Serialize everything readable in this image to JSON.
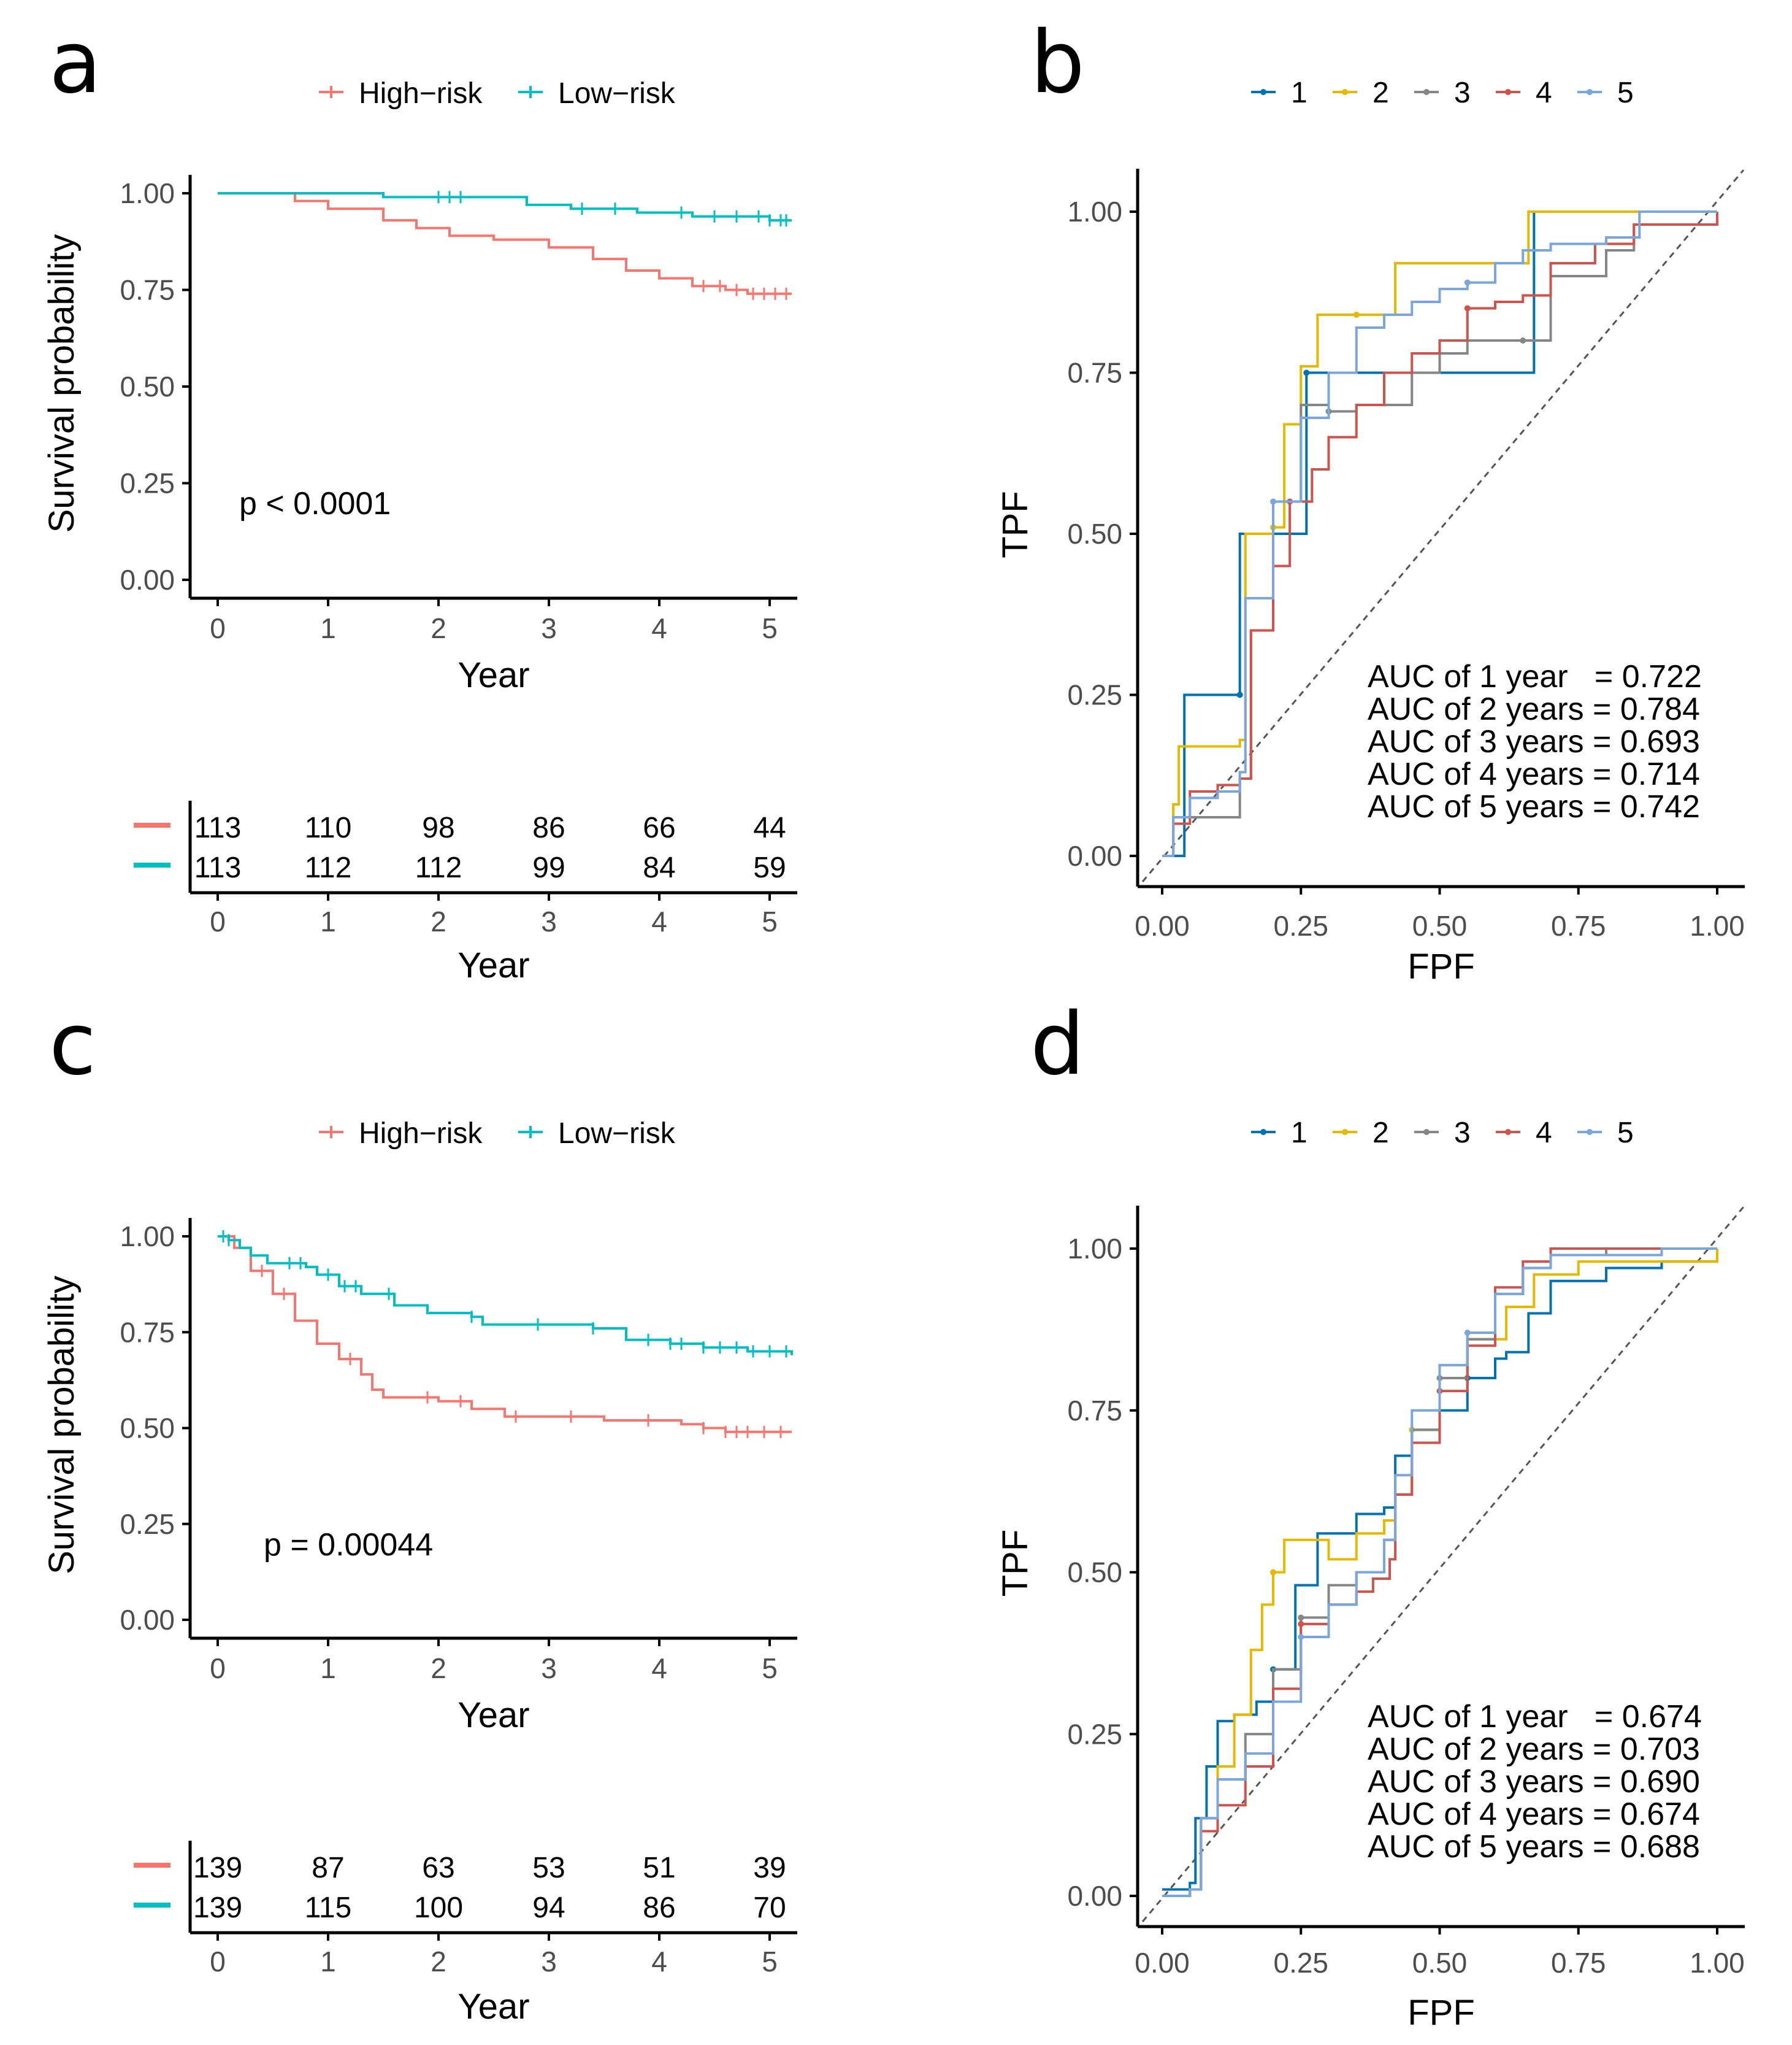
{
  "panels": {
    "a": {
      "letter": "a",
      "legend": [
        {
          "label": "High−risk",
          "color": "#F8766D"
        },
        {
          "label": "Low−risk",
          "color": "#00BFC4"
        }
      ],
      "pvalue": "p < 0.0001",
      "risk_table": {
        "rows": [
          {
            "color": "#F8766D",
            "values": [
              "113",
              "110",
              "98",
              "86",
              "66",
              "44"
            ]
          },
          {
            "color": "#00BFC4",
            "values": [
              "113",
              "112",
              "112",
              "99",
              "84",
              "59"
            ]
          }
        ],
        "xlabel": "Year"
      }
    },
    "b": {
      "letter": "b"
    },
    "c": {
      "letter": "c",
      "legend": [
        {
          "label": "High−risk",
          "color": "#F8766D"
        },
        {
          "label": "Low−risk",
          "color": "#00BFC4"
        }
      ],
      "pvalue": "p = 0.00044",
      "risk_table": {
        "rows": [
          {
            "color": "#F8766D",
            "values": [
              "139",
              "87",
              "63",
              "53",
              "51",
              "39"
            ]
          },
          {
            "color": "#00BFC4",
            "values": [
              "139",
              "115",
              "100",
              "94",
              "86",
              "70"
            ]
          }
        ],
        "xlabel": "Year"
      }
    },
    "d": {
      "letter": "d"
    }
  },
  "chart_data": [
    {
      "panel": "a",
      "type": "line",
      "xlabel": "Year",
      "ylabel": "Survival probability",
      "xlim": [
        0,
        5.2
      ],
      "ylim": [
        0,
        1
      ],
      "xticks": [
        "0",
        "1",
        "2",
        "3",
        "4",
        "5"
      ],
      "yticks": [
        "0.00",
        "0.25",
        "0.50",
        "0.75",
        "1.00"
      ],
      "series": [
        {
          "name": "High−risk",
          "color": "#F8766D",
          "x": [
            0,
            0.7,
            1.0,
            1.5,
            1.8,
            2.1,
            2.5,
            3.0,
            3.4,
            3.7,
            4.0,
            4.3,
            4.6,
            4.8,
            5.2
          ],
          "y": [
            1.0,
            0.98,
            0.96,
            0.93,
            0.91,
            0.89,
            0.88,
            0.86,
            0.83,
            0.8,
            0.78,
            0.76,
            0.75,
            0.74,
            0.74
          ],
          "censor_x": [
            4.4,
            4.55,
            4.7,
            4.85,
            4.95,
            5.05,
            5.15
          ]
        },
        {
          "name": "Low−risk",
          "color": "#00BFC4",
          "x": [
            0,
            1.5,
            2.5,
            2.8,
            3.2,
            3.8,
            4.3,
            5.0,
            5.2
          ],
          "y": [
            1.0,
            0.99,
            0.99,
            0.97,
            0.96,
            0.95,
            0.94,
            0.93,
            0.93
          ],
          "censor_x": [
            2.0,
            2.1,
            2.2,
            3.3,
            3.6,
            4.2,
            4.5,
            4.7,
            4.9,
            5.0,
            5.1,
            5.15
          ]
        }
      ]
    },
    {
      "panel": "b",
      "type": "line",
      "xlabel": "FPF",
      "ylabel": "TPF",
      "xlim": [
        0,
        1
      ],
      "ylim": [
        0,
        1
      ],
      "xticks": [
        "0.00",
        "0.25",
        "0.50",
        "0.75",
        "1.00"
      ],
      "yticks": [
        "0.00",
        "0.25",
        "0.50",
        "0.75",
        "1.00"
      ],
      "legend": [
        "1",
        "2",
        "3",
        "4",
        "5"
      ],
      "auc_lines": [
        "AUC of 1 year   = 0.722",
        "AUC of 2 years = 0.784",
        "AUC of 3 years = 0.693",
        "AUC of 4 years = 0.714",
        "AUC of 5 years = 0.742"
      ],
      "series": [
        {
          "name": "1",
          "color": "#0072B2",
          "x": [
            0,
            0.04,
            0.04,
            0.14,
            0.14,
            0.26,
            0.26,
            0.67,
            0.67,
            1.0
          ],
          "y": [
            0,
            0,
            0.25,
            0.25,
            0.5,
            0.5,
            0.75,
            0.75,
            1.0,
            1.0
          ]
        },
        {
          "name": "2",
          "color": "#E7B800",
          "x": [
            0,
            0.02,
            0.03,
            0.14,
            0.15,
            0.2,
            0.22,
            0.25,
            0.28,
            0.3,
            0.35,
            0.42,
            0.5,
            0.62,
            0.66,
            1.0
          ],
          "y": [
            0,
            0.08,
            0.17,
            0.18,
            0.5,
            0.51,
            0.67,
            0.76,
            0.84,
            0.84,
            0.84,
            0.92,
            0.92,
            0.92,
            1.0,
            1.0
          ]
        },
        {
          "name": "3",
          "color": "#868686",
          "x": [
            0,
            0.02,
            0.14,
            0.16,
            0.2,
            0.25,
            0.3,
            0.35,
            0.4,
            0.45,
            0.5,
            0.55,
            0.65,
            0.7,
            0.77,
            0.8,
            0.85,
            1.0
          ],
          "y": [
            0,
            0.06,
            0.12,
            0.35,
            0.55,
            0.7,
            0.69,
            0.7,
            0.7,
            0.75,
            0.78,
            0.8,
            0.8,
            0.9,
            0.9,
            0.94,
            0.98,
            1.0
          ]
        },
        {
          "name": "4",
          "color": "#CD534C",
          "x": [
            0,
            0.02,
            0.05,
            0.1,
            0.14,
            0.16,
            0.2,
            0.23,
            0.27,
            0.3,
            0.35,
            0.4,
            0.45,
            0.5,
            0.55,
            0.6,
            0.65,
            0.7,
            0.78,
            0.85,
            1.0
          ],
          "y": [
            0,
            0.05,
            0.1,
            0.11,
            0.12,
            0.35,
            0.45,
            0.55,
            0.6,
            0.65,
            0.7,
            0.75,
            0.78,
            0.8,
            0.85,
            0.86,
            0.87,
            0.92,
            0.95,
            0.98,
            1.0
          ]
        },
        {
          "name": "5",
          "color": "#7AA6DC",
          "x": [
            0,
            0.02,
            0.05,
            0.1,
            0.14,
            0.15,
            0.2,
            0.25,
            0.3,
            0.35,
            0.4,
            0.45,
            0.5,
            0.55,
            0.6,
            0.65,
            0.7,
            0.8,
            0.86,
            1.0
          ],
          "y": [
            0,
            0.06,
            0.09,
            0.1,
            0.13,
            0.4,
            0.55,
            0.68,
            0.75,
            0.82,
            0.84,
            0.86,
            0.88,
            0.89,
            0.92,
            0.94,
            0.95,
            0.96,
            1.0,
            1.0
          ]
        }
      ]
    },
    {
      "panel": "c",
      "type": "line",
      "xlabel": "Year",
      "ylabel": "Survival probability",
      "xlim": [
        0,
        5.2
      ],
      "ylim": [
        0,
        1
      ],
      "xticks": [
        "0",
        "1",
        "2",
        "3",
        "4",
        "5"
      ],
      "yticks": [
        "0.00",
        "0.25",
        "0.50",
        "0.75",
        "1.00"
      ],
      "series": [
        {
          "name": "High−risk",
          "color": "#F8766D",
          "x": [
            0,
            0.15,
            0.3,
            0.5,
            0.7,
            0.9,
            1.1,
            1.3,
            1.4,
            1.5,
            1.7,
            2.0,
            2.3,
            2.6,
            3.0,
            3.5,
            4.0,
            4.2,
            4.4,
            4.6,
            5.0,
            5.2
          ],
          "y": [
            1.0,
            0.97,
            0.91,
            0.85,
            0.78,
            0.72,
            0.68,
            0.64,
            0.6,
            0.58,
            0.58,
            0.57,
            0.55,
            0.53,
            0.53,
            0.52,
            0.52,
            0.51,
            0.5,
            0.49,
            0.49,
            0.49
          ],
          "censor_x": [
            0.4,
            0.6,
            1.2,
            1.9,
            2.2,
            2.7,
            3.2,
            3.9,
            4.4,
            4.6,
            4.7,
            4.8,
            4.95,
            5.1
          ]
        },
        {
          "name": "Low−risk",
          "color": "#00BFC4",
          "x": [
            0,
            0.1,
            0.2,
            0.3,
            0.45,
            0.6,
            0.8,
            0.9,
            1.1,
            1.3,
            1.6,
            1.9,
            2.3,
            2.4,
            2.9,
            3.4,
            3.7,
            4.1,
            4.4,
            4.8,
            5.2
          ],
          "y": [
            1.0,
            0.99,
            0.97,
            0.95,
            0.93,
            0.93,
            0.92,
            0.9,
            0.87,
            0.85,
            0.82,
            0.8,
            0.79,
            0.77,
            0.77,
            0.76,
            0.73,
            0.72,
            0.71,
            0.7,
            0.69
          ],
          "censor_x": [
            0.05,
            0.1,
            0.65,
            0.75,
            1.0,
            1.15,
            1.25,
            1.55,
            2.3,
            2.9,
            3.4,
            3.9,
            4.1,
            4.2,
            4.4,
            4.55,
            4.7,
            4.85,
            5.0,
            5.15
          ]
        }
      ]
    },
    {
      "panel": "d",
      "type": "line",
      "xlabel": "FPF",
      "ylabel": "TPF",
      "xlim": [
        0,
        1
      ],
      "ylim": [
        0,
        1
      ],
      "xticks": [
        "0.00",
        "0.25",
        "0.50",
        "0.75",
        "1.00"
      ],
      "yticks": [
        "0.00",
        "0.25",
        "0.50",
        "0.75",
        "1.00"
      ],
      "legend": [
        "1",
        "2",
        "3",
        "4",
        "5"
      ],
      "auc_lines": [
        "AUC of 1 year   = 0.674",
        "AUC of 2 years = 0.703",
        "AUC of 3 years = 0.690",
        "AUC of 4 years = 0.674",
        "AUC of 5 years = 0.688"
      ],
      "series": [
        {
          "name": "1",
          "color": "#0072B2",
          "x": [
            0,
            0.05,
            0.06,
            0.08,
            0.1,
            0.13,
            0.17,
            0.2,
            0.24,
            0.28,
            0.35,
            0.4,
            0.42,
            0.45,
            0.5,
            0.55,
            0.6,
            0.62,
            0.66,
            0.7,
            0.8,
            0.9,
            1.0
          ],
          "y": [
            0.01,
            0.02,
            0.12,
            0.2,
            0.27,
            0.28,
            0.3,
            0.35,
            0.48,
            0.56,
            0.59,
            0.6,
            0.68,
            0.72,
            0.75,
            0.8,
            0.83,
            0.84,
            0.9,
            0.95,
            0.97,
            0.98,
            1.0
          ]
        },
        {
          "name": "2",
          "color": "#E7B800",
          "x": [
            0,
            0.05,
            0.07,
            0.1,
            0.13,
            0.16,
            0.18,
            0.2,
            0.22,
            0.25,
            0.3,
            0.35,
            0.4,
            0.42,
            0.45,
            0.5,
            0.55,
            0.62,
            0.67,
            0.75,
            1.0
          ],
          "y": [
            0,
            0.01,
            0.12,
            0.2,
            0.28,
            0.38,
            0.45,
            0.5,
            0.55,
            0.55,
            0.52,
            0.56,
            0.58,
            0.62,
            0.72,
            0.8,
            0.86,
            0.91,
            0.96,
            0.98,
            1.0
          ]
        },
        {
          "name": "3",
          "color": "#868686",
          "x": [
            0,
            0.05,
            0.07,
            0.1,
            0.15,
            0.2,
            0.25,
            0.3,
            0.35,
            0.4,
            0.42,
            0.45,
            0.5,
            0.55,
            0.6,
            0.65,
            0.7,
            0.8,
            1.0
          ],
          "y": [
            0,
            0.01,
            0.12,
            0.18,
            0.25,
            0.35,
            0.43,
            0.48,
            0.5,
            0.55,
            0.62,
            0.72,
            0.8,
            0.86,
            0.93,
            0.97,
            0.99,
            1.0,
            1.0
          ]
        },
        {
          "name": "4",
          "color": "#CD534C",
          "x": [
            0,
            0.05,
            0.07,
            0.1,
            0.15,
            0.2,
            0.25,
            0.3,
            0.35,
            0.38,
            0.41,
            0.42,
            0.45,
            0.5,
            0.55,
            0.6,
            0.65,
            0.7,
            0.8,
            1.0
          ],
          "y": [
            0,
            0.01,
            0.1,
            0.14,
            0.2,
            0.32,
            0.42,
            0.45,
            0.47,
            0.49,
            0.52,
            0.62,
            0.7,
            0.78,
            0.85,
            0.94,
            0.98,
            1.0,
            1.0,
            1.0
          ]
        },
        {
          "name": "5",
          "color": "#7AA6DC",
          "x": [
            0,
            0.05,
            0.07,
            0.1,
            0.15,
            0.2,
            0.25,
            0.3,
            0.35,
            0.4,
            0.42,
            0.45,
            0.5,
            0.55,
            0.6,
            0.65,
            0.7,
            0.8,
            0.9,
            1.0
          ],
          "y": [
            0,
            0.01,
            0.12,
            0.18,
            0.22,
            0.3,
            0.4,
            0.45,
            0.5,
            0.55,
            0.65,
            0.75,
            0.82,
            0.87,
            0.93,
            0.97,
            0.99,
            0.99,
            1.0,
            1.0
          ]
        }
      ]
    }
  ]
}
